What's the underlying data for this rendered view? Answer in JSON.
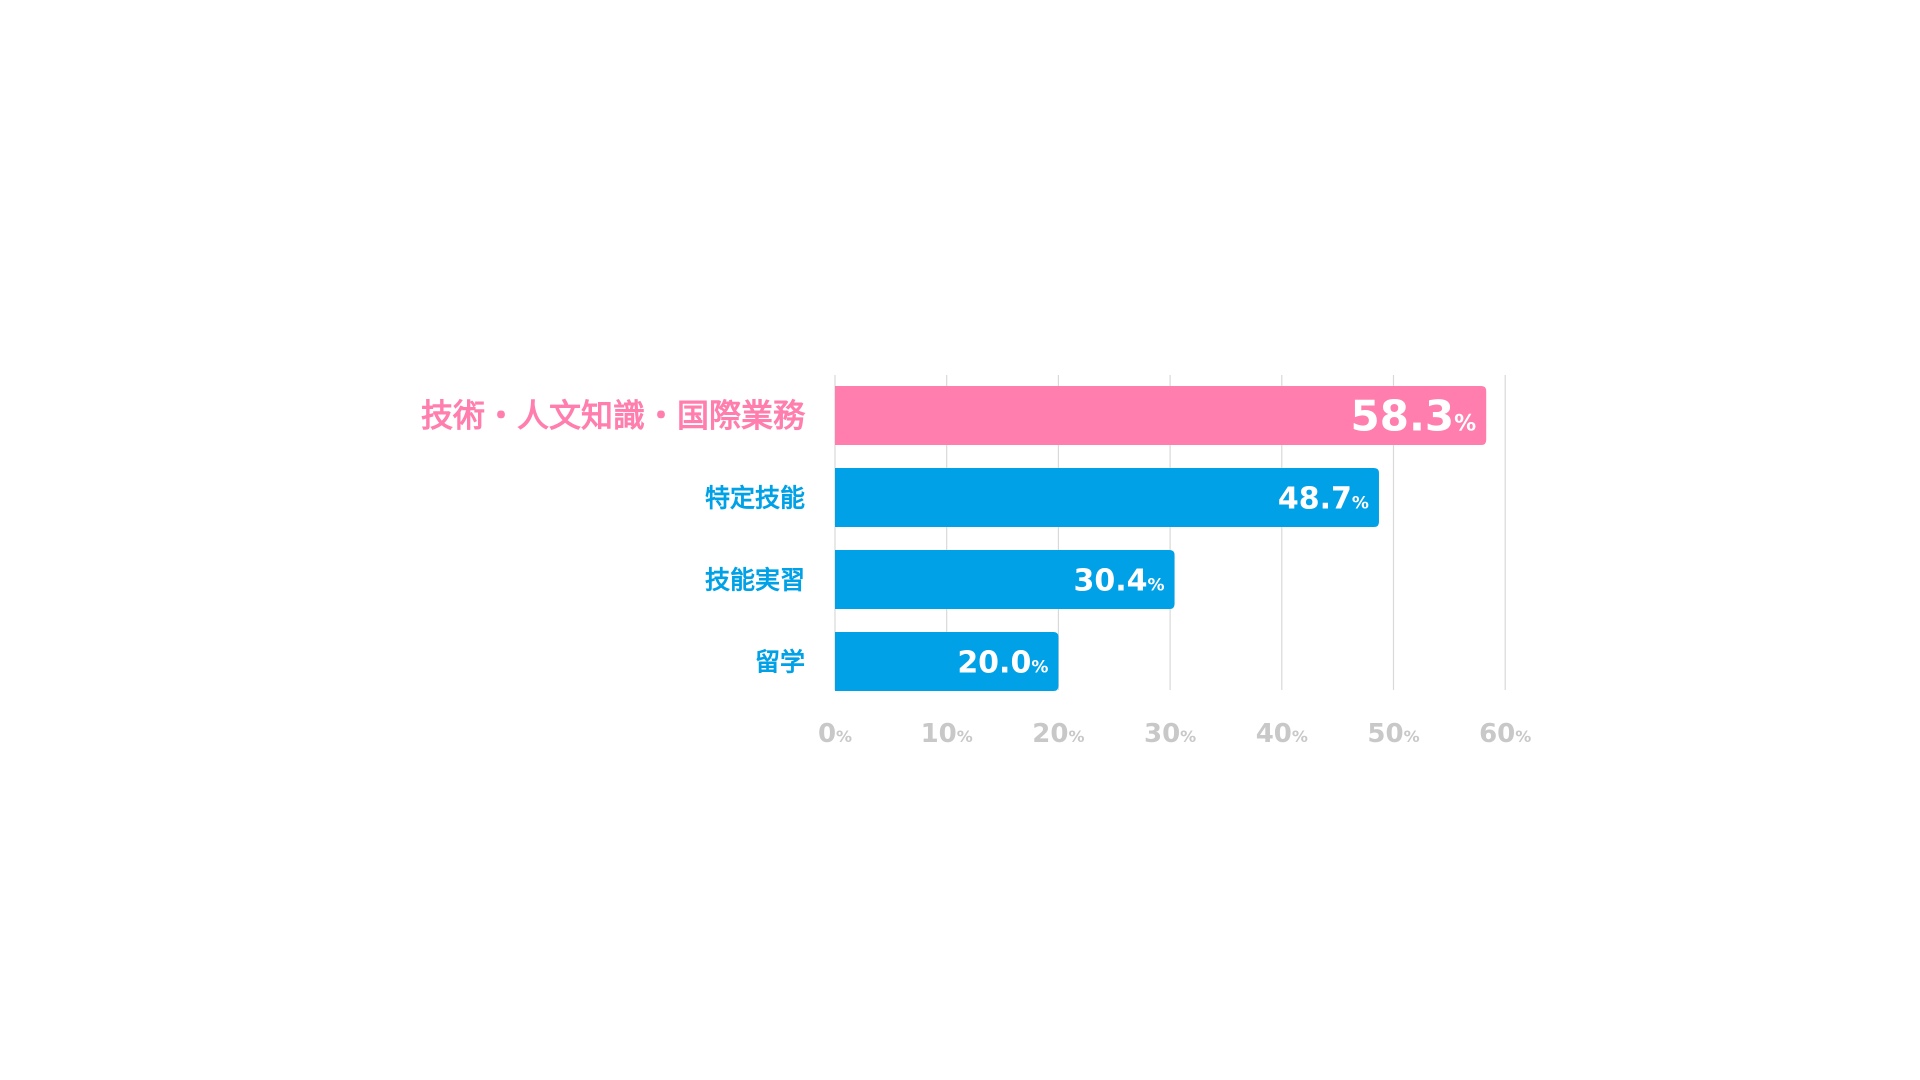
{
  "chart_data": {
    "type": "bar",
    "orientation": "horizontal",
    "title": "",
    "xlabel": "",
    "ylabel": "",
    "categories": [
      "技術・人文知識・国際業務",
      "特定技能",
      "技能実習",
      "留学"
    ],
    "values": [
      58.3,
      48.7,
      30.4,
      20.0
    ],
    "value_labels": [
      "58.3",
      "48.7",
      "30.4",
      "20.0"
    ],
    "unit": "%",
    "xlim": [
      0,
      60
    ],
    "ticks": [
      0,
      10,
      20,
      30,
      40,
      50,
      60
    ],
    "tick_labels": [
      "0",
      "10",
      "20",
      "30",
      "40",
      "50",
      "60"
    ],
    "grid": true,
    "highlight_index": 0,
    "colors": {
      "highlight": "#FF7EAD",
      "bar": "#00A1E6",
      "grid": "#D9D9D9",
      "tick_text": "#C8C8C8",
      "value_text": "#FFFFFF"
    }
  }
}
